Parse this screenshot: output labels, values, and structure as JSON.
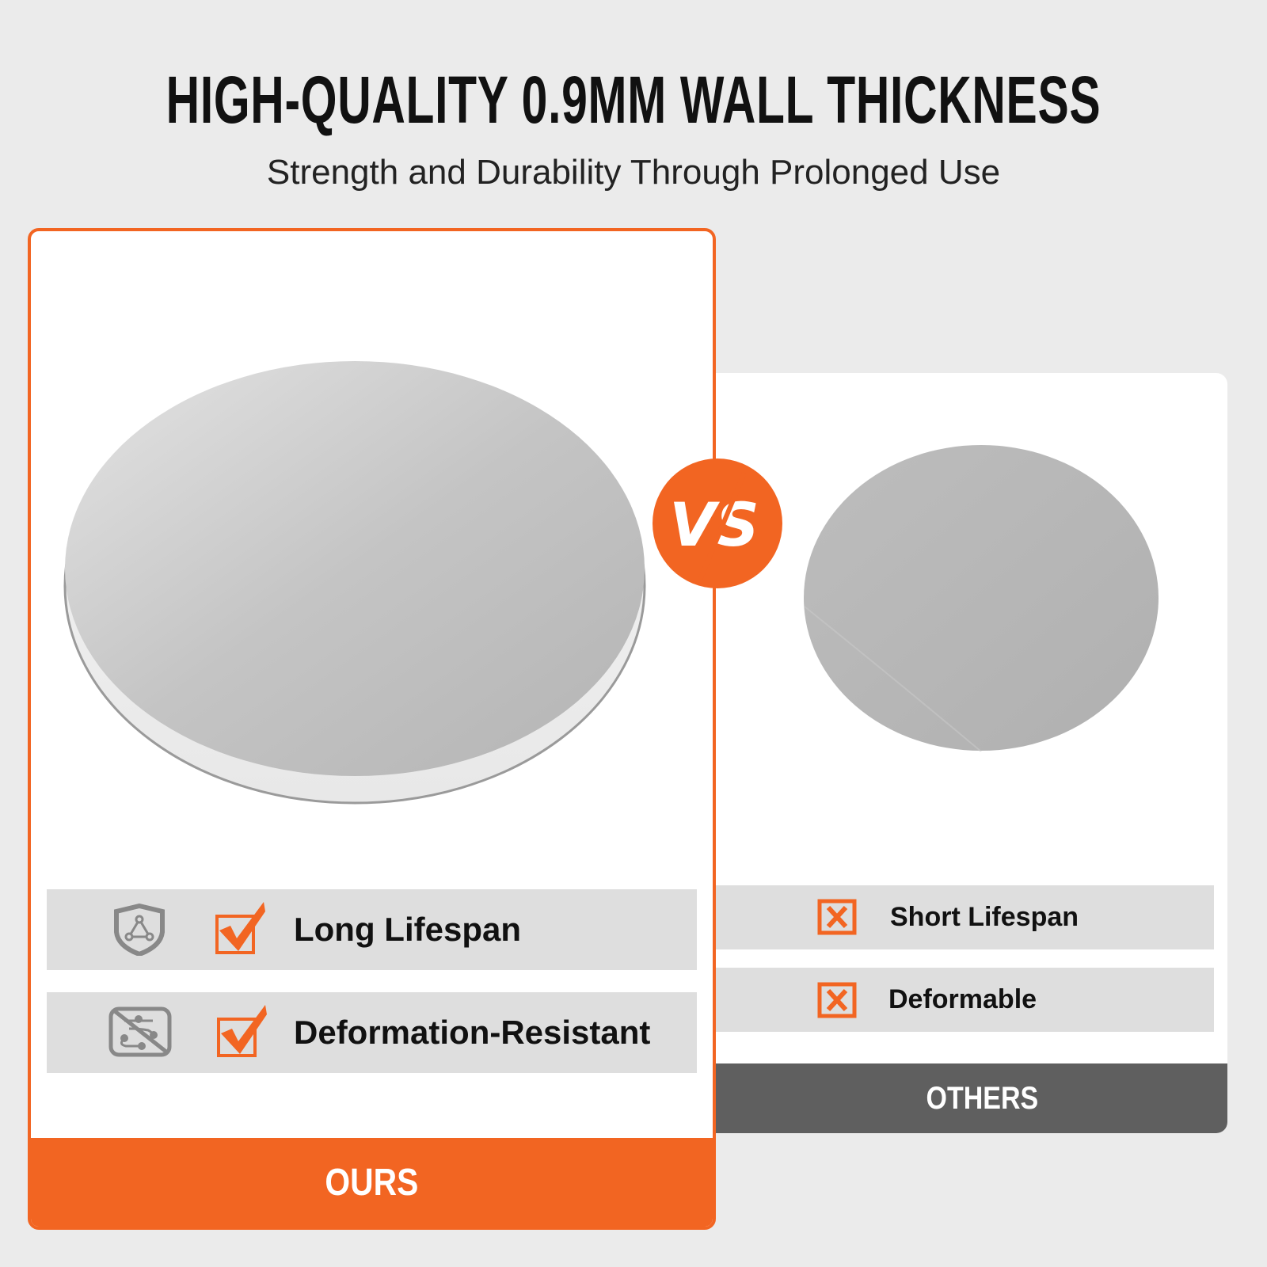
{
  "header": {
    "title": "HIGH-QUALITY 0.9MM WALL THICKNESS",
    "subtitle": "Strength and Durability Through Prolonged Use"
  },
  "ours": {
    "label": "OURS",
    "features": [
      {
        "icon": "shield-icon",
        "status": "check-icon",
        "label": "Long Lifespan"
      },
      {
        "icon": "no-deform-icon",
        "status": "check-icon",
        "label": "Deformation-Resistant"
      }
    ]
  },
  "others": {
    "label": "OTHERS",
    "features": [
      {
        "status": "x-box-icon",
        "label": "Short Lifespan"
      },
      {
        "status": "x-box-icon",
        "label": "Deformable"
      }
    ]
  },
  "vs_badge": "VS",
  "colors": {
    "accent": "#f26522",
    "others_band": "#5f5f5f",
    "row_bg": "#dedede",
    "background": "#ebebeb"
  }
}
